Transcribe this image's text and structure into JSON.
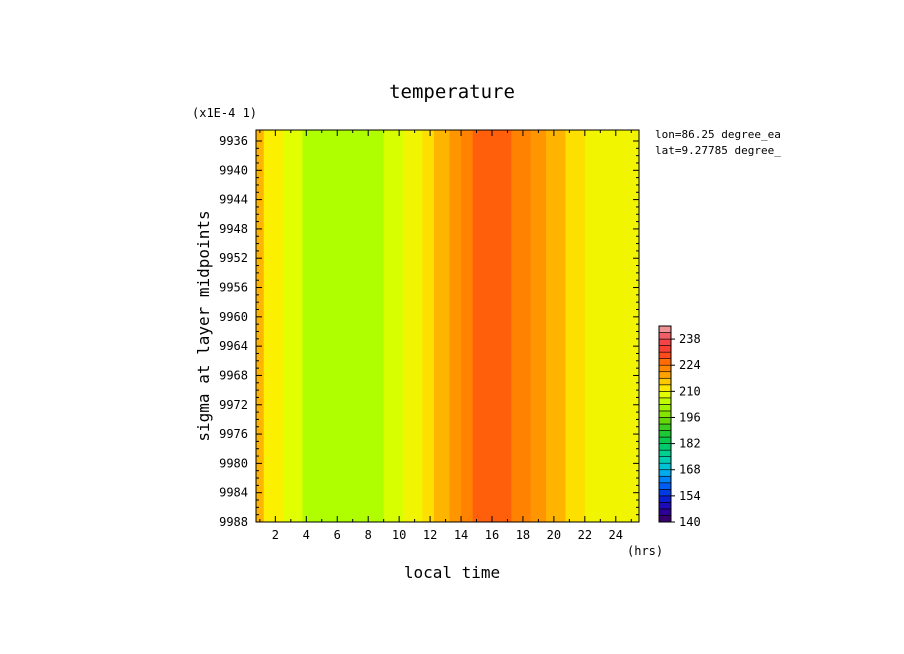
{
  "chart_data": {
    "type": "heatmap",
    "title": "temperature",
    "xlabel": "local time",
    "x_unit": "(hrs)",
    "ylabel": "sigma at layer midpoints",
    "y_scale_note": "(x1E-4 1)",
    "annotations": [
      "lon=86.25 degree_ea",
      "lat=9.27785 degree_"
    ],
    "x_ticks": [
      "2",
      "4",
      "6",
      "8",
      "10",
      "12",
      "14",
      "16",
      "18",
      "20",
      "22",
      "24"
    ],
    "y_ticks": [
      "9936",
      "9940",
      "9944",
      "9948",
      "9952",
      "9956",
      "9960",
      "9964",
      "9968",
      "9972",
      "9976",
      "9980",
      "9984",
      "9988"
    ],
    "xlim": [
      0.75,
      25.5
    ],
    "ylim_top_to_bottom": [
      9934.5,
      9988
    ],
    "colorbar": {
      "range": [
        140,
        245
      ],
      "step": 3.5,
      "tick_labels": [
        "140",
        "154",
        "168",
        "182",
        "196",
        "210",
        "224",
        "238"
      ]
    },
    "bands": [
      {
        "x0": 0.75,
        "x1": 1.25,
        "value": 217
      },
      {
        "x0": 1.25,
        "x1": 2.5,
        "value": 211
      },
      {
        "x0": 2.5,
        "x1": 3.75,
        "value": 208
      },
      {
        "x0": 3.75,
        "x1": 9.0,
        "value": 203
      },
      {
        "x0": 9.0,
        "x1": 10.25,
        "value": 207
      },
      {
        "x0": 10.25,
        "x1": 11.5,
        "value": 210
      },
      {
        "x0": 11.5,
        "x1": 12.25,
        "value": 213
      },
      {
        "x0": 12.25,
        "x1": 13.25,
        "value": 217
      },
      {
        "x0": 13.25,
        "x1": 14.0,
        "value": 220
      },
      {
        "x0": 14.0,
        "x1": 14.75,
        "value": 223
      },
      {
        "x0": 14.75,
        "x1": 17.25,
        "value": 227
      },
      {
        "x0": 17.25,
        "x1": 18.5,
        "value": 223
      },
      {
        "x0": 18.5,
        "x1": 19.5,
        "value": 220
      },
      {
        "x0": 19.5,
        "x1": 20.75,
        "value": 217
      },
      {
        "x0": 20.75,
        "x1": 22.0,
        "value": 213
      },
      {
        "x0": 22.0,
        "x1": 25.5,
        "value": 210
      }
    ]
  }
}
